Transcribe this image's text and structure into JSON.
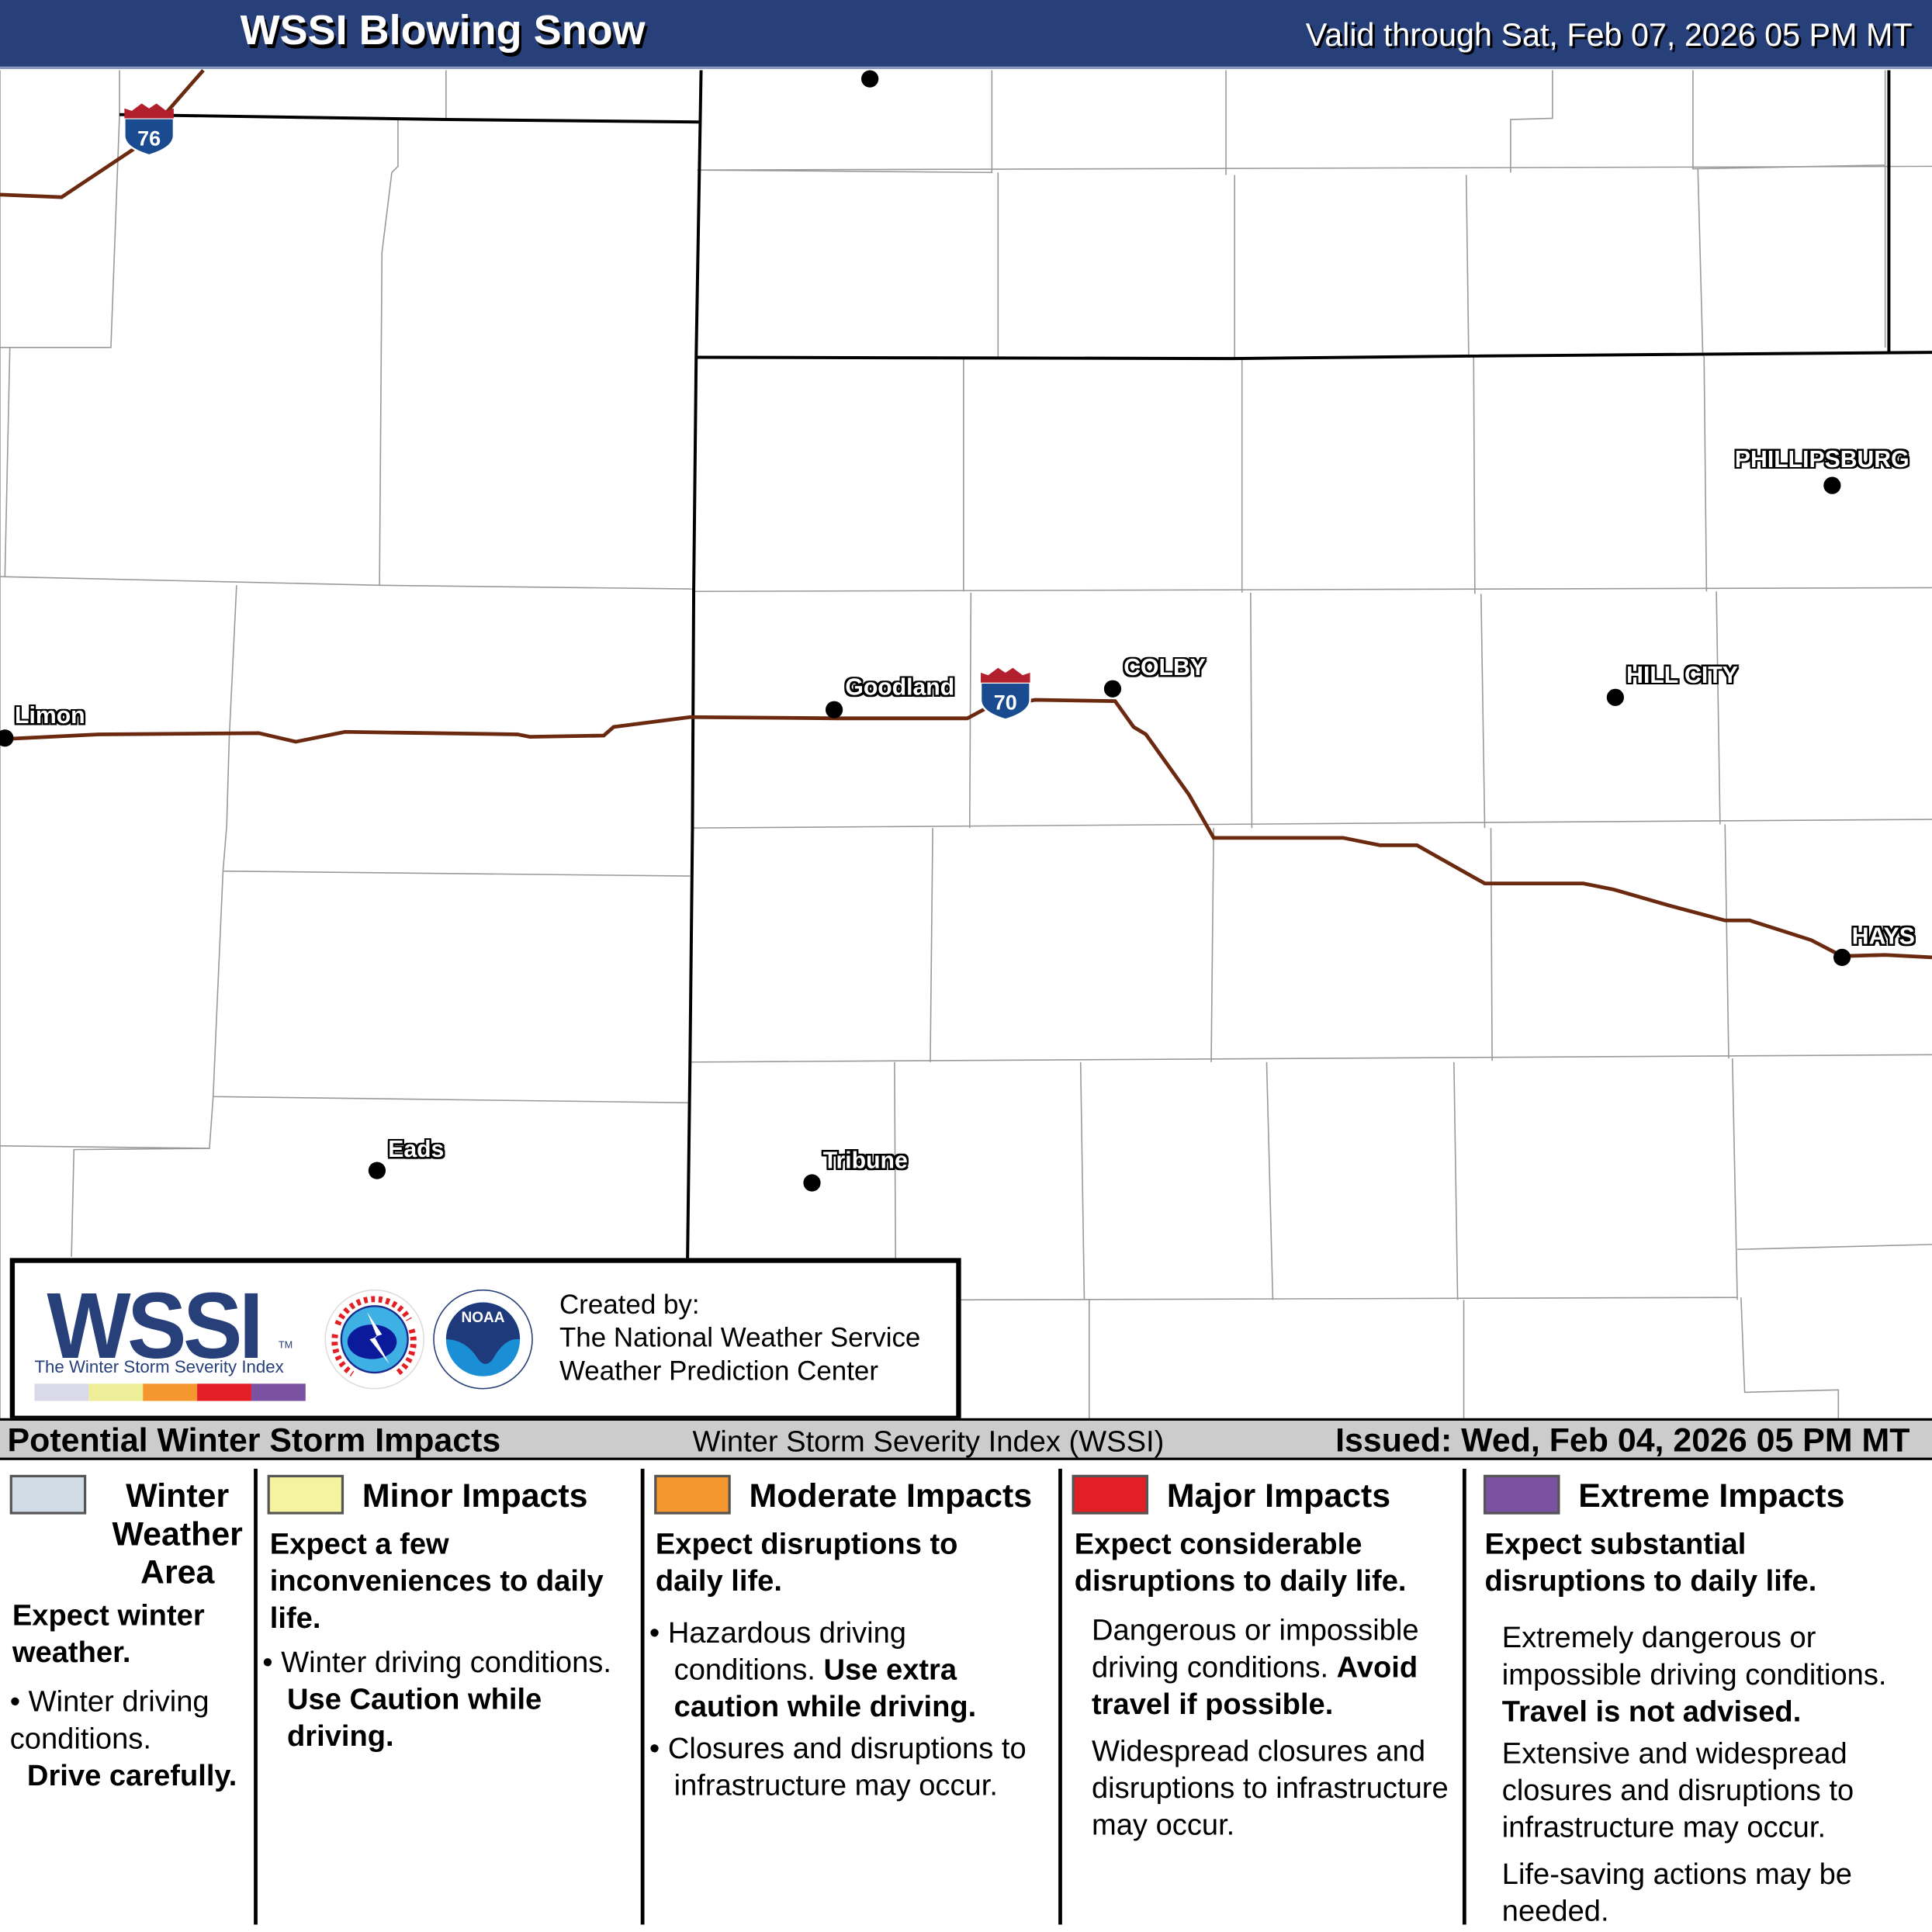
{
  "header": {
    "title": "WSSI Blowing Snow",
    "valid": "Valid through Sat, Feb 07, 2026 05 PM MT"
  },
  "map": {
    "interstates": [
      {
        "number": "76"
      },
      {
        "number": "70"
      }
    ],
    "road_color": "#6b2a10",
    "cities": [
      "Limon",
      "Goodland",
      "COLBY",
      "PHILLIPSBURG",
      "HILL CITY",
      "HAYS",
      "Eads",
      "Tribune"
    ]
  },
  "logo": {
    "wssi": "WSSI",
    "tm": "TM",
    "subtitle": "The Winter Storm Severity Index",
    "created_by": "Created by:",
    "org1": "The National Weather Service",
    "org2": "Weather Prediction Center",
    "nws_text": "NATIONAL WEATHER SERVICE",
    "noaa_text": "NOAA"
  },
  "band": {
    "left": "Potential Winter Storm Impacts",
    "center": "Winter Storm Severity Index (WSSI)",
    "right": "Issued: Wed, Feb 04, 2026 05 PM MT"
  },
  "legend": [
    {
      "color": "#d0dde6",
      "title": "Winter Weather Area",
      "sub": "Expect winter weather.",
      "b1": "Winter driving conditions.",
      "b1bold": "Drive carefully."
    },
    {
      "color": "#f6f3a0",
      "title": "Minor Impacts",
      "sub": "Expect a few inconveniences to daily life.",
      "b1": "Winter driving conditions.",
      "b1bold": "Use Caution while driving."
    },
    {
      "color": "#f6962f",
      "title": "Moderate Impacts",
      "sub": "Expect disruptions to daily life.",
      "b1": "Hazardous driving conditions.",
      "b1bold": "Use extra caution while driving.",
      "b2": "Closures and disruptions to infrastructure may occur."
    },
    {
      "color": "#e31f26",
      "title": "Major Impacts",
      "sub": "Expect considerable disruptions to daily life.",
      "b1": "Dangerous or impossible driving conditions.",
      "b1bold": "Avoid travel if possible.",
      "b2": "Widespread closures and disruptions to infrastructure may occur."
    },
    {
      "color": "#7b52a1",
      "title": "Extreme Impacts",
      "sub": "Expect substantial disruptions to daily life.",
      "b1": "Extremely dangerous or impossible driving conditions.",
      "b1bold": "Travel is not advised.",
      "b2": "Extensive and widespread closures and disruptions to infrastructure may occur.",
      "b3": "Life-saving actions may be needed."
    }
  ],
  "colors": {
    "header": "#27407a",
    "bar": [
      "#d9d9ea",
      "#eeee99",
      "#f6962f",
      "#e31f26",
      "#7b52a1"
    ]
  }
}
